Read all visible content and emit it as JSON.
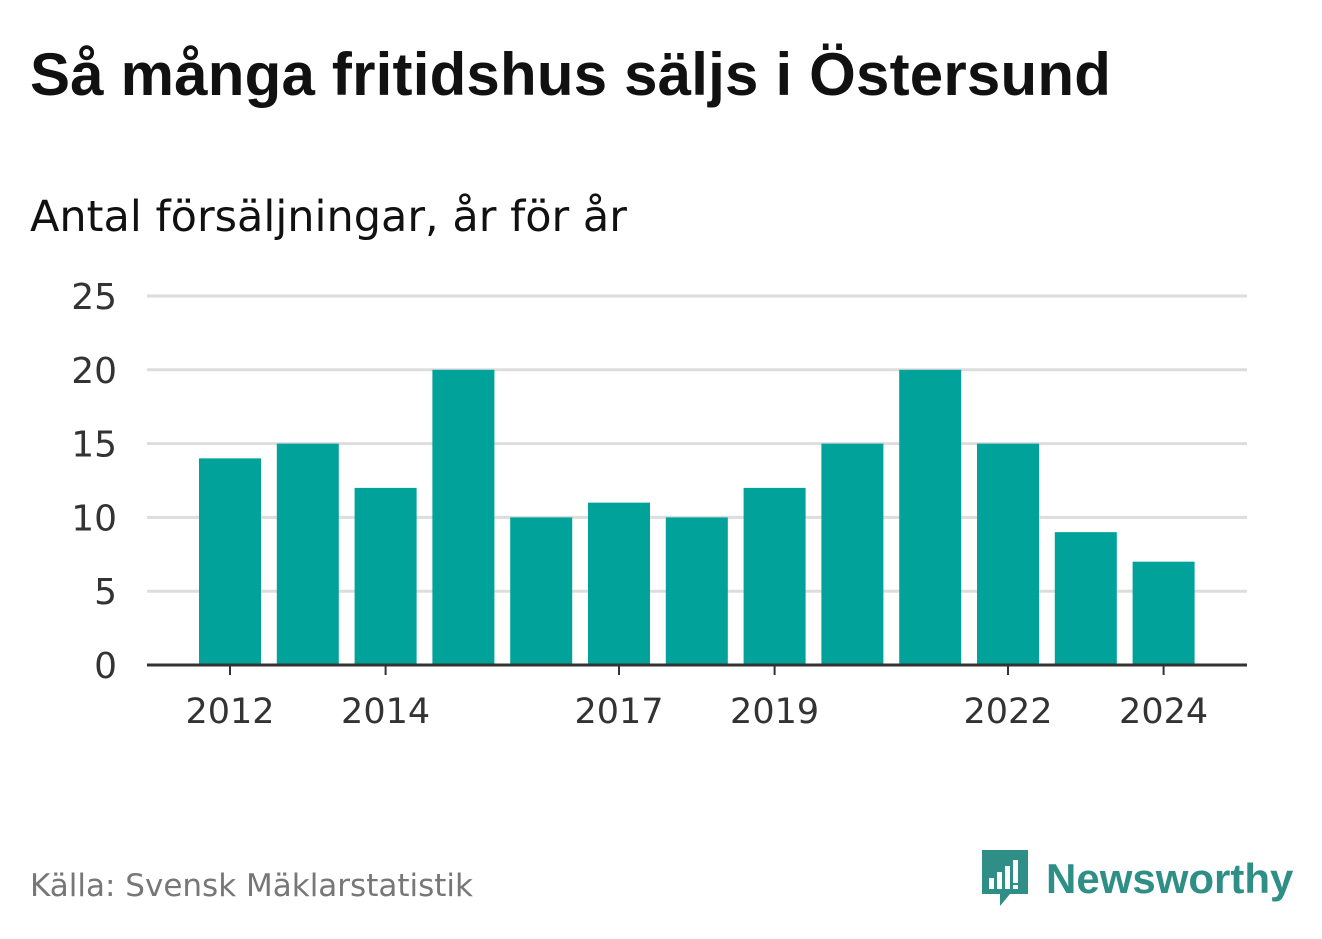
{
  "title": "Så många fritidshus säljs i Östersund",
  "subtitle": "Antal försäljningar, år för år",
  "source": "Källa: Svensk Mäklarstatistik",
  "brand": {
    "name": "Newsworthy",
    "icon": "bar-chart-speech-bubble-icon",
    "color": "#2f8f86"
  },
  "colors": {
    "bar": "#00a29a",
    "grid": "#dddddd",
    "axis": "#333333",
    "tick_text": "#333333"
  },
  "chart_data": {
    "type": "bar",
    "categories": [
      "2012",
      "2013",
      "2014",
      "2015",
      "2016",
      "2017",
      "2018",
      "2019",
      "2020",
      "2021",
      "2022",
      "2023",
      "2024"
    ],
    "values": [
      14,
      15,
      12,
      20,
      10,
      11,
      10,
      12,
      15,
      20,
      15,
      9,
      7
    ],
    "x_tick_labels": [
      "2012",
      "2014",
      "2017",
      "2019",
      "2022",
      "2024"
    ],
    "y_ticks": [
      0,
      5,
      10,
      15,
      20,
      25
    ],
    "ylim": [
      0,
      25
    ],
    "grid": true,
    "xlabel": "",
    "ylabel": ""
  }
}
